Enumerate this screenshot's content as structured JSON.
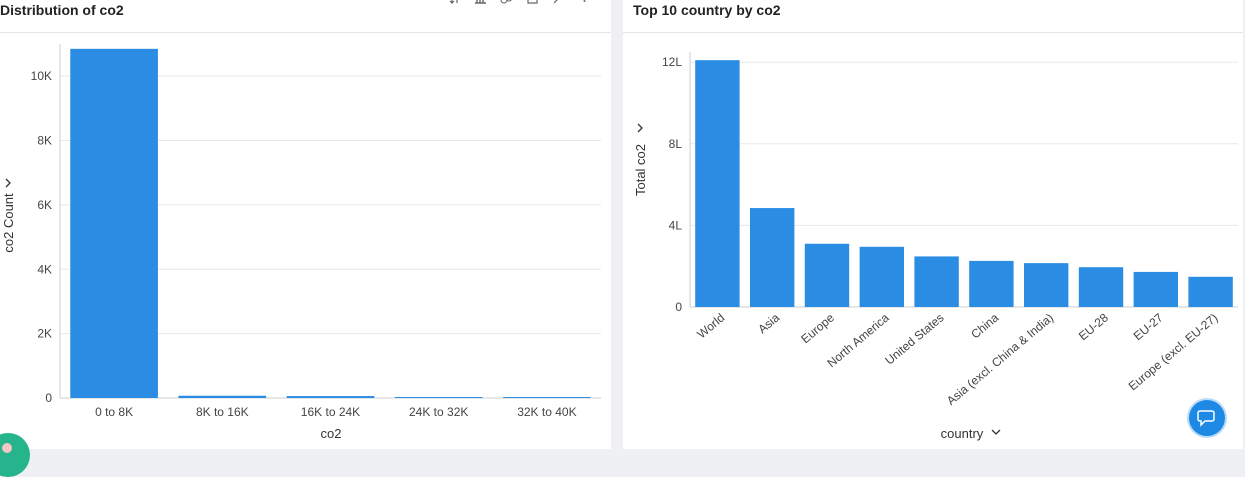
{
  "colors": {
    "bar": "#2b8ce3",
    "grid": "#e8e8e8",
    "axis": "#cfcfcf"
  },
  "toolbar": {
    "icons": [
      "sort-icon",
      "bar-chart-icon",
      "link-icon",
      "export-icon",
      "expand-icon",
      "more-icon"
    ]
  },
  "chart_data": [
    {
      "type": "bar",
      "title": "Distribution of co2",
      "xlabel": "co2",
      "ylabel": "co2 Count",
      "categories": [
        "0 to 8K",
        "8K to 16K",
        "16K to 24K",
        "24K to 32K",
        "32K to 40K"
      ],
      "values": [
        10850,
        70,
        60,
        30,
        30
      ],
      "ylim": [
        0,
        11000
      ],
      "yticks": [
        0,
        2000,
        4000,
        6000,
        8000,
        10000
      ],
      "ytick_labels": [
        "0",
        "2K",
        "4K",
        "6K",
        "8K",
        "10K"
      ],
      "grid": true,
      "legend": "none"
    },
    {
      "type": "bar",
      "title": "Top 10 country by co2",
      "xlabel": "country",
      "ylabel": "Total co2",
      "categories": [
        "World",
        "Asia",
        "Europe",
        "North America",
        "United States",
        "China",
        "Asia (excl. China & India)",
        "EU-28",
        "EU-27",
        "Europe (excl. EU-27)"
      ],
      "values": [
        1210000,
        485000,
        310000,
        295000,
        248000,
        226000,
        215000,
        195000,
        172000,
        148000
      ],
      "ylim": [
        0,
        1250000
      ],
      "yticks": [
        0,
        400000,
        800000,
        1200000
      ],
      "ytick_labels": [
        "0",
        "4L",
        "8L",
        "12L"
      ],
      "grid": true,
      "legend": "none"
    }
  ]
}
